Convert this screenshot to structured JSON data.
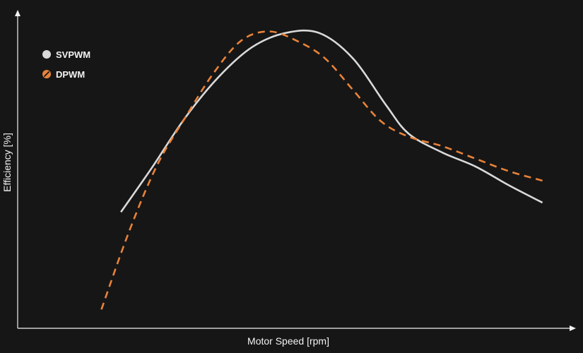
{
  "chart_data": {
    "type": "line",
    "xlabel": "Motor Speed [rpm]",
    "ylabel": "Efficiency [%]",
    "xlim": [
      0,
      100
    ],
    "ylim": [
      0,
      100
    ],
    "grid": false,
    "tick_labels": false,
    "legend_placement": "top-left",
    "series": [
      {
        "name": "SVPWM",
        "color": "#d9d9d9",
        "style": "solid",
        "x": [
          18.5,
          24,
          30,
          36,
          42,
          48,
          54,
          60,
          66,
          70,
          76,
          82,
          88,
          94
        ],
        "y": [
          37,
          51,
          67,
          80,
          89.5,
          94,
          94,
          86,
          71,
          62,
          56,
          51.5,
          45.5,
          40
        ]
      },
      {
        "name": "DPWM",
        "color": "#e8823a",
        "style": "dashed",
        "x": [
          15,
          20,
          25,
          30,
          35,
          40,
          45,
          50,
          55,
          60,
          65,
          70,
          76,
          82,
          88,
          94
        ],
        "y": [
          6,
          31,
          52,
          67,
          81,
          91.5,
          94.5,
          91.5,
          86,
          76,
          66,
          61,
          58,
          54,
          50,
          47
        ]
      }
    ]
  }
}
